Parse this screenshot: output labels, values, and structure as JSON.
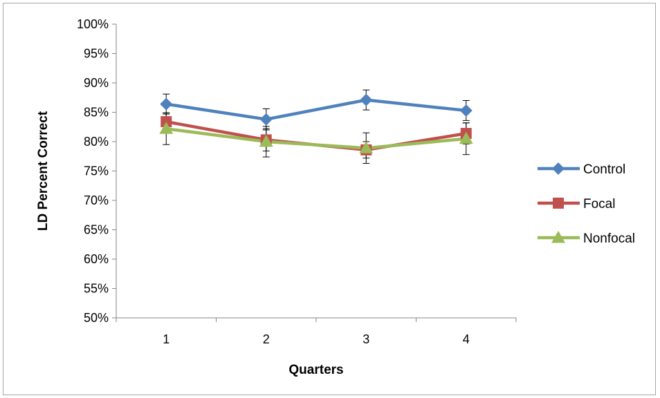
{
  "chart_data": {
    "type": "line",
    "xlabel": "Quarters",
    "ylabel": "LD Percent Correct",
    "categories": [
      "1",
      "2",
      "3",
      "4"
    ],
    "ylim": [
      0.5,
      1.0
    ],
    "ytick_step": 0.05,
    "ytick_labels": [
      "50%",
      "55%",
      "60%",
      "65%",
      "70%",
      "75%",
      "80%",
      "85%",
      "90%",
      "95%",
      "100%"
    ],
    "grid": false,
    "legend_position": "right",
    "series": [
      {
        "name": "Control",
        "color": "#4f81bd",
        "marker": "diamond",
        "values": [
          0.864,
          0.838,
          0.871,
          0.853
        ],
        "errors": [
          0.017,
          0.018,
          0.017,
          0.017
        ]
      },
      {
        "name": "Focal",
        "color": "#c0504d",
        "marker": "square",
        "values": [
          0.834,
          0.803,
          0.786,
          0.814
        ],
        "errors": [
          0.015,
          0.019,
          0.014,
          0.018
        ]
      },
      {
        "name": "Nonfocal",
        "color": "#9bbb59",
        "marker": "triangle",
        "values": [
          0.822,
          0.8,
          0.789,
          0.805
        ],
        "errors": [
          0.027,
          0.026,
          0.026,
          0.027
        ]
      }
    ]
  }
}
